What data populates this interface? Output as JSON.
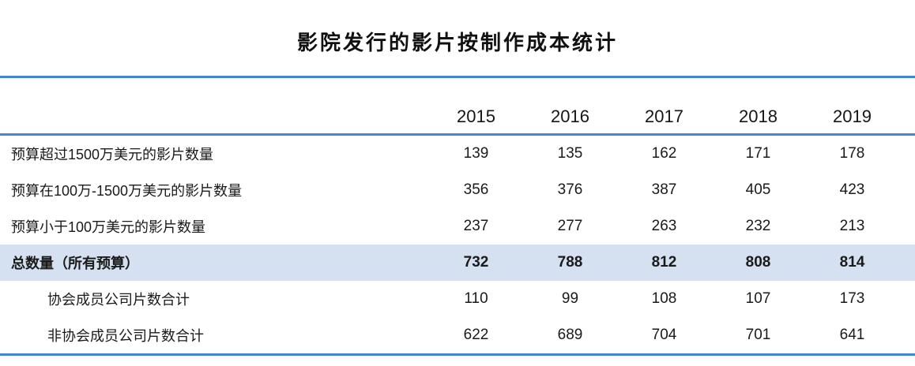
{
  "title": "影院发行的影片按制作成本统计",
  "table": {
    "years": [
      "2015",
      "2016",
      "2017",
      "2018",
      "2019"
    ],
    "rows": [
      {
        "label": "预算超过1500万美元的影片数量",
        "values": [
          "139",
          "135",
          "162",
          "171",
          "178"
        ],
        "emphasis": false
      },
      {
        "label": "预算在100万-1500万美元的影片数量",
        "values": [
          "356",
          "376",
          "387",
          "405",
          "423"
        ],
        "emphasis": false
      },
      {
        "label": "预算小于100万美元的影片数量",
        "values": [
          "237",
          "277",
          "263",
          "232",
          "213"
        ],
        "emphasis": false
      },
      {
        "label": "总数量（所有预算）",
        "values": [
          "732",
          "788",
          "812",
          "808",
          "814"
        ],
        "emphasis": true
      },
      {
        "label": "协会成员公司片数合计",
        "values": [
          "110",
          "99",
          "108",
          "107",
          "173"
        ],
        "emphasis": false
      },
      {
        "label": "非协会成员公司片数合计",
        "values": [
          "622",
          "689",
          "704",
          "701",
          "641"
        ],
        "emphasis": false
      }
    ]
  },
  "colors": {
    "accent_line": "#4286db",
    "total_row_bg": "#d5e0f1"
  },
  "chart_data": {
    "type": "table",
    "title": "影院发行的影片按制作成本统计",
    "categories": [
      "2015",
      "2016",
      "2017",
      "2018",
      "2019"
    ],
    "series": [
      {
        "name": "预算超过1500万美元的影片数量",
        "values": [
          139,
          135,
          162,
          171,
          178
        ]
      },
      {
        "name": "预算在100万-1500万美元的影片数量",
        "values": [
          356,
          376,
          387,
          405,
          423
        ]
      },
      {
        "name": "预算小于100万美元的影片数量",
        "values": [
          237,
          277,
          263,
          232,
          213
        ]
      },
      {
        "name": "总数量（所有预算）",
        "values": [
          732,
          788,
          812,
          808,
          814
        ]
      },
      {
        "name": "协会成员公司片数合计",
        "values": [
          110,
          99,
          108,
          107,
          173
        ]
      },
      {
        "name": "非协会成员公司片数合计",
        "values": [
          622,
          689,
          704,
          701,
          641
        ]
      }
    ],
    "layout_hints": {
      "highlighted_row": "总数量（所有预算）",
      "header_row": "years",
      "grid": "accent rules above header, below header, below last row"
    }
  }
}
